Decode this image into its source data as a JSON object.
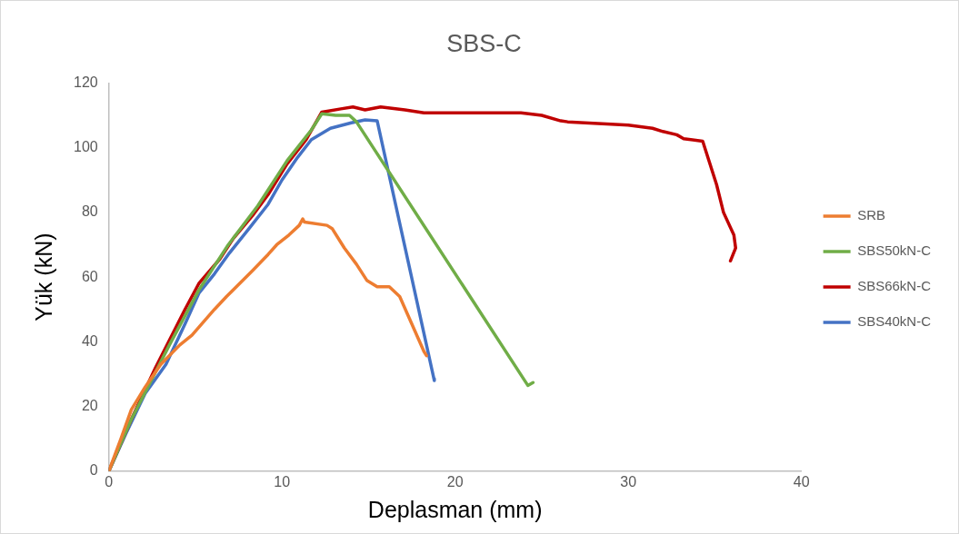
{
  "chart_data": {
    "type": "line",
    "title": "SBS-C",
    "xlabel": "Deplasman (mm)",
    "ylabel": "Yük (kN)",
    "xlim": [
      0,
      40
    ],
    "xticks": [
      0,
      10,
      20,
      30,
      40
    ],
    "ylim": [
      0,
      120
    ],
    "yticks": [
      0,
      20,
      40,
      60,
      80,
      100,
      120
    ],
    "grid": false,
    "legend": "right",
    "marker": "none",
    "line_style": "solid",
    "series": [
      {
        "name": "SRB",
        "color": "#ed7d31",
        "x": [
          0,
          0.7,
          1.3,
          2.1,
          3,
          4.1,
          4.8,
          6.1,
          6.8,
          8.3,
          9.2,
          9.7,
          10.4,
          11,
          11.2,
          11.3,
          12.6,
          12.9,
          13.6,
          14.3,
          14.9,
          15.5,
          16.2,
          16.8,
          17.5,
          18.2,
          18.35
        ],
        "values": [
          0,
          10,
          19,
          26,
          33,
          39,
          42,
          50,
          54,
          62,
          67,
          70,
          73,
          76,
          78,
          77,
          76,
          75,
          69,
          64,
          59,
          57,
          57,
          54,
          45.5,
          37,
          35.7
        ]
      },
      {
        "name": "SBS50kN-C",
        "color": "#70ad47",
        "x": [
          0,
          0.7,
          1.3,
          3.5,
          5.2,
          6.9,
          8.6,
          10.3,
          11.7,
          12.3,
          13.1,
          13.9,
          14.3,
          24.2,
          24.5
        ],
        "values": [
          0,
          8.6,
          16,
          39,
          56,
          70,
          82,
          96,
          105.5,
          110.5,
          110,
          110,
          108,
          26.5,
          27.4
        ]
      },
      {
        "name": "SBS66kN-C",
        "color": "#c00000",
        "x": [
          0,
          1.3,
          2.7,
          4.4,
          5.2,
          6.4,
          7.2,
          8.3,
          9.2,
          10.3,
          11.4,
          12.3,
          13.4,
          14.1,
          14.8,
          15.7,
          17.1,
          18.2,
          23.8,
          25,
          26.1,
          26.5,
          30,
          31.4,
          32,
          32.8,
          33.2,
          34.3,
          35.1,
          35.5,
          36.1,
          36.2,
          35.9
        ],
        "values": [
          0,
          16,
          32,
          50,
          58,
          65.5,
          72,
          79,
          85.5,
          95,
          102.5,
          111,
          112,
          112.6,
          111.7,
          112.6,
          111.7,
          110.8,
          110.8,
          110,
          108.3,
          108,
          107,
          106,
          105,
          104,
          102.8,
          102,
          88.6,
          80,
          73,
          69,
          65
        ]
      },
      {
        "name": "SBS40kN-C",
        "color": "#4472c4",
        "x": [
          0,
          1,
          2.1,
          3.3,
          4.4,
          5.2,
          6.1,
          6.9,
          8.1,
          9.2,
          10,
          10.9,
          11.7,
          12.8,
          14,
          14.8,
          15.5,
          18.8,
          18.8
        ],
        "values": [
          0,
          11.7,
          24,
          33,
          45.5,
          55,
          61,
          67,
          75,
          82.5,
          90,
          97,
          102.5,
          106,
          107.7,
          108.6,
          108.3,
          28,
          28.6
        ]
      }
    ]
  }
}
